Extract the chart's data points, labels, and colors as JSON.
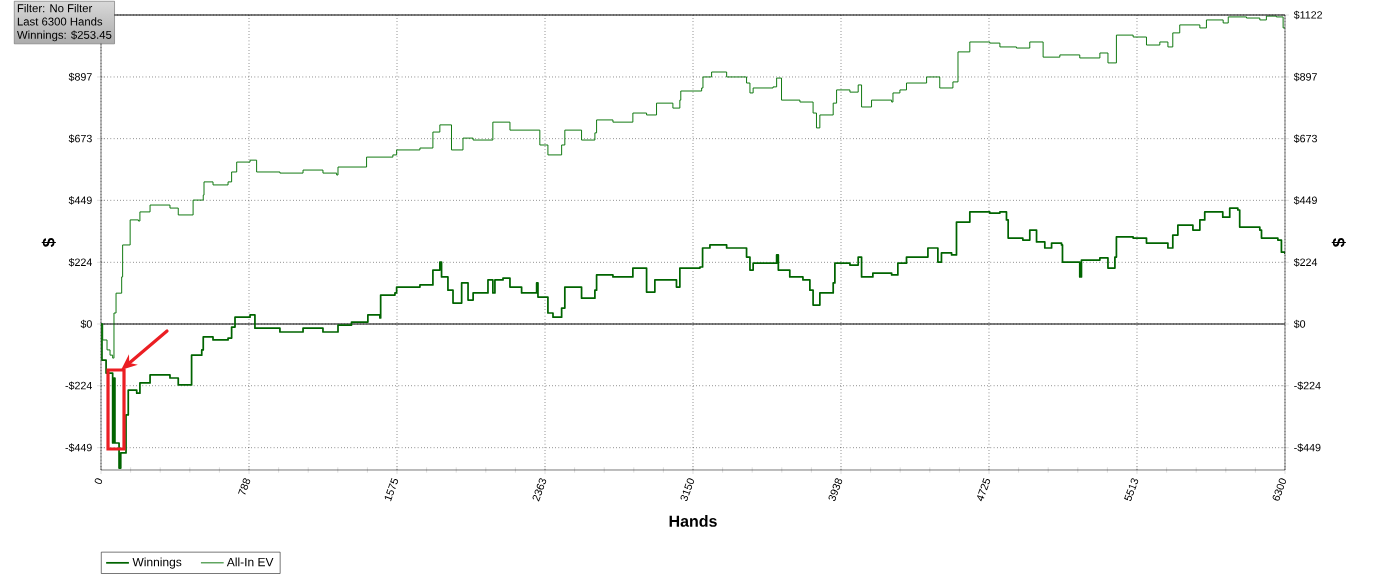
{
  "chart_data": {
    "type": "step",
    "xlabel": "Hands",
    "ylabel": "$",
    "y2label": "$",
    "annotations": [
      "Filter: No Filter",
      "Last  6300 Hands",
      "Winnings: $253.45"
    ],
    "xlim": [
      0,
      6300
    ],
    "ylim": [
      -530,
      1122
    ],
    "y2lim": [
      -530,
      1122
    ],
    "xticks": [
      0,
      {
        "value": 787.5,
        "label": "788"
      },
      1575,
      {
        "value": 2362.5,
        "label": "2363"
      },
      3150,
      {
        "value": 3937.5,
        "label": "3938"
      },
      4725,
      {
        "value": 5512.5,
        "label": "5513"
      },
      6300
    ],
    "yticks": [
      {
        "value": -449,
        "label": "-$449"
      },
      {
        "value": -224,
        "label": "-$224"
      },
      {
        "value": 0,
        "label": "$0"
      },
      {
        "value": 224,
        "label": "$224"
      },
      {
        "value": 449,
        "label": "$449"
      },
      {
        "value": 673,
        "label": "$673"
      },
      {
        "value": 897,
        "label": "$897"
      },
      {
        "value": 1122,
        "label": null
      }
    ],
    "y2ticks": [
      {
        "value": -449,
        "label": "-$449"
      },
      {
        "value": -224,
        "label": "-$224"
      },
      {
        "value": 0,
        "label": "$0"
      },
      {
        "value": 224,
        "label": "$224"
      },
      {
        "value": 449,
        "label": "$449"
      },
      {
        "value": 673,
        "label": "$673"
      },
      {
        "value": 897,
        "label": "$897"
      },
      {
        "value": 1122,
        "label": "$1122"
      }
    ],
    "grid": true,
    "legend": "bottom left",
    "ref_lines": [
      {
        "axis": "y",
        "value": 0,
        "color": "#000000"
      }
    ],
    "series": [
      {
        "name": "Winnings",
        "color": "#006400",
        "x": [
          0,
          5,
          21,
          27,
          57,
          62,
          69,
          74,
          96,
          96,
          105,
          133,
          145,
          190,
          207,
          261,
          367,
          411,
          474,
          482,
          536,
          544,
          596,
          676,
          695,
          713,
          793,
          819,
          952,
          1075,
          1181,
          1254,
          1261,
          1333,
          1420,
          1484,
          1488,
          1564,
          1573,
          1697,
          1766,
          1803,
          1812,
          1846,
          1873,
          1919,
          1953,
          1980,
          2059,
          2085,
          2096,
          2139,
          2176,
          2238,
          2318,
          2325,
          2378,
          2405,
          2451,
          2468,
          2557,
          2628,
          2637,
          2724,
          2830,
          2894,
          2903,
          2947,
          3062,
          3080,
          3187,
          3201,
          3240,
          3329,
          3435,
          3453,
          3470,
          3576,
          3595,
          3604,
          3665,
          3735,
          3772,
          3789,
          3825,
          3896,
          3905,
          3985,
          4029,
          4047,
          4107,
          4207,
          4240,
          4286,
          4373,
          4400,
          4453,
          4472,
          4526,
          4552,
          4623,
          4729,
          4783,
          4818,
          4827,
          4905,
          4942,
          4978,
          5022,
          5058,
          5111,
          5116,
          5191,
          5208,
          5217,
          5315,
          5358,
          5395,
          5403,
          5492,
          5563,
          5643,
          5677,
          5703,
          5730,
          5810,
          5847,
          5873,
          5969,
          6006,
          6049,
          6059,
          6166,
          6175,
          6262,
          6281,
          6300
        ],
        "values": [
          0,
          -131,
          -131,
          -178,
          -178,
          -432,
          -196,
          -432,
          -468,
          -523,
          -468,
          -330,
          -240,
          -251,
          -214,
          -185,
          -196,
          -221,
          -221,
          -113,
          -94,
          -47,
          -58,
          -51,
          -11,
          25,
          33,
          -15,
          -29,
          -15,
          -29,
          -29,
          -4,
          7,
          33,
          22,
          105,
          113,
          134,
          142,
          196,
          225,
          171,
          123,
          76,
          149,
          87,
          113,
          160,
          113,
          160,
          167,
          134,
          113,
          149,
          98,
          40,
          25,
          58,
          134,
          94,
          123,
          178,
          171,
          203,
          203,
          116,
          160,
          134,
          203,
          207,
          276,
          287,
          276,
          243,
          196,
          221,
          221,
          251,
          196,
          171,
          160,
          123,
          69,
          113,
          149,
          221,
          214,
          243,
          171,
          185,
          178,
          221,
          243,
          243,
          276,
          225,
          258,
          251,
          370,
          407,
          403,
          407,
          378,
          312,
          305,
          341,
          298,
          276,
          294,
          287,
          225,
          225,
          171,
          232,
          240,
          203,
          243,
          316,
          312,
          294,
          294,
          276,
          323,
          359,
          341,
          378,
          407,
          388,
          421,
          414,
          352,
          341,
          312,
          305,
          261,
          254
        ]
      },
      {
        "name": "All-In EV",
        "color": "#007000",
        "x": [
          0,
          9,
          21,
          32,
          48,
          62,
          69,
          80,
          110,
          115,
          145,
          155,
          199,
          207,
          261,
          367,
          411,
          482,
          490,
          544,
          548,
          596,
          676,
          695,
          722,
          793,
          828,
          952,
          1075,
          1181,
          1254,
          1261,
          1413,
          1553,
          1573,
          1697,
          1766,
          1803,
          1865,
          1926,
          1980,
          2085,
          2176,
          2318,
          2335,
          2378,
          2451,
          2468,
          2557,
          2628,
          2637,
          2724,
          2830,
          2903,
          2956,
          3043,
          3080,
          3085,
          3196,
          3203,
          3249,
          3329,
          3435,
          3453,
          3470,
          3576,
          3595,
          3621,
          3719,
          3789,
          3807,
          3825,
          3896,
          3914,
          3985,
          4029,
          4047,
          4100,
          4207,
          4214,
          4251,
          4286,
          4393,
          4463,
          4533,
          4560,
          4623,
          4729,
          4783,
          4871,
          4942,
          5013,
          5102,
          5208,
          5315,
          5358,
          5403,
          5492,
          5563,
          5634,
          5677,
          5703,
          5740,
          5847,
          5882,
          5971,
          5998,
          6095,
          6166,
          6201,
          6254,
          6290,
          6300
        ],
        "values": [
          0,
          -58,
          -58,
          -94,
          -113,
          -124,
          40,
          112,
          171,
          287,
          287,
          378,
          374,
          407,
          432,
          421,
          396,
          396,
          450,
          468,
          516,
          505,
          516,
          552,
          588,
          595,
          552,
          548,
          559,
          548,
          541,
          570,
          606,
          614,
          632,
          639,
          697,
          723,
          632,
          675,
          668,
          733,
          704,
          704,
          650,
          614,
          650,
          704,
          668,
          694,
          741,
          733,
          766,
          759,
          802,
          784,
          813,
          846,
          857,
          897,
          915,
          897,
          875,
          839,
          857,
          861,
          893,
          813,
          806,
          766,
          712,
          759,
          802,
          850,
          842,
          868,
          788,
          813,
          806,
          839,
          850,
          875,
          897,
          857,
          879,
          988,
          1024,
          1020,
          1006,
          1002,
          1024,
          969,
          977,
          966,
          984,
          948,
          1049,
          1042,
          1013,
          1024,
          1006,
          1057,
          1086,
          1075,
          1104,
          1093,
          1115,
          1111,
          1104,
          1118,
          1115,
          1075,
          1075
        ]
      }
    ]
  }
}
